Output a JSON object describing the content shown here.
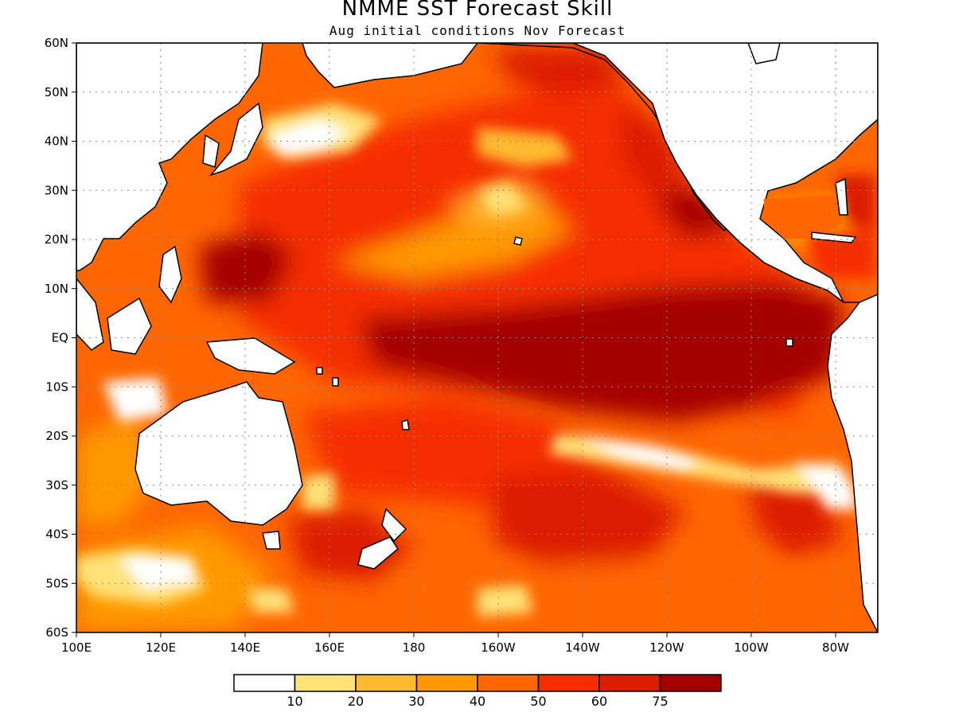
{
  "title": "NMME SST Forecast Skill",
  "subtitle": "Aug initial conditions  Nov Forecast",
  "lat_labels": [
    "60N",
    "50N",
    "40N",
    "30N",
    "20N",
    "10N",
    "EQ",
    "10S",
    "20S",
    "30S",
    "40S",
    "50S",
    "60S"
  ],
  "lon_labels": [
    "100E",
    "120E",
    "140E",
    "160E",
    "180",
    "160W",
    "140W",
    "120W",
    "100W",
    "80W"
  ],
  "colorbar": {
    "colors": [
      "#ffffff",
      "#ffe278",
      "#ffba30",
      "#ff9900",
      "#ff6600",
      "#f52d00",
      "#dc1e00",
      "#a50000"
    ],
    "labels": [
      "10",
      "20",
      "30",
      "40",
      "50",
      "60",
      "75"
    ]
  }
}
